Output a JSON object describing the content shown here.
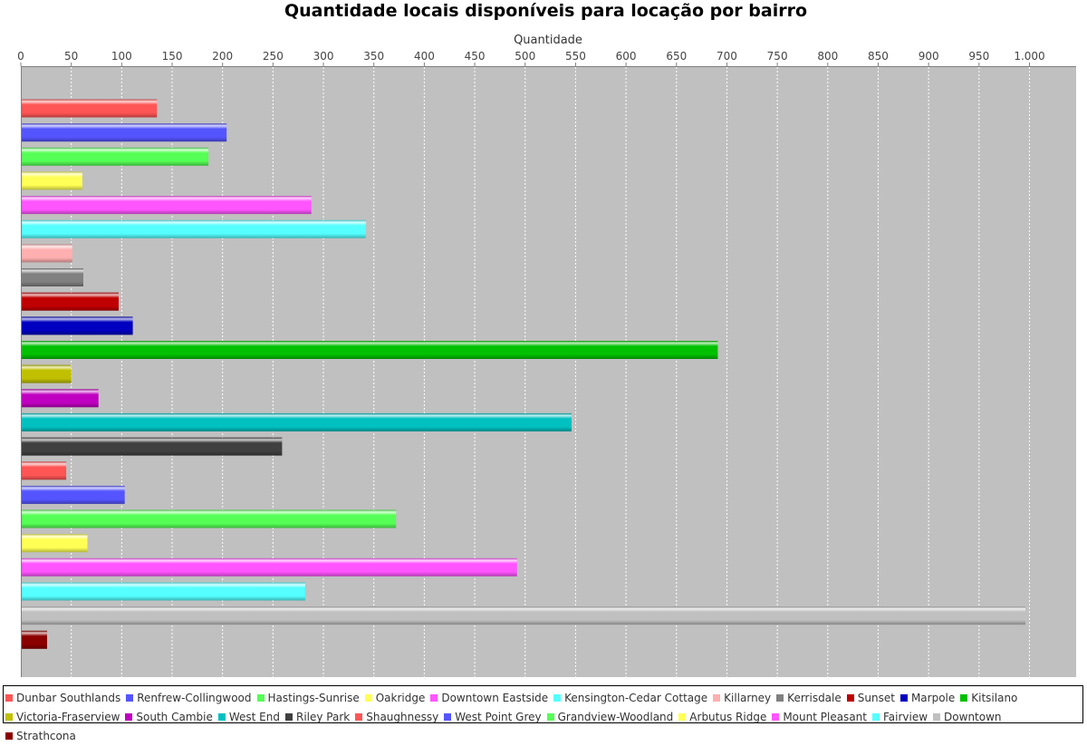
{
  "chart_data": {
    "type": "bar",
    "orientation": "horizontal",
    "title": "Quantidade locais disponíveis para locação por bairro",
    "xlabel": "Quantidade",
    "ylabel": "",
    "xlim": [
      0,
      1030
    ],
    "ticks": [
      "0",
      "50",
      "100",
      "150",
      "200",
      "250",
      "300",
      "350",
      "400",
      "450",
      "500",
      "550",
      "600",
      "650",
      "700",
      "750",
      "800",
      "850",
      "900",
      "950",
      "1.000"
    ],
    "grid": true,
    "legend_position": "bottom",
    "categories": [
      "Dunbar Southlands",
      "Renfrew-Collingwood",
      "Hastings-Sunrise",
      "Oakridge",
      "Downtown Eastside",
      "Kensington-Cedar Cottage",
      "Killarney",
      "Kerrisdale",
      "Sunset",
      "Marpole",
      "Kitsilano",
      "Victoria-Fraserview",
      "South Cambie",
      "West End",
      "Riley Park",
      "Shaughnessy",
      "West Point Grey",
      "Grandview-Woodland",
      "Arbutus Ridge",
      "Mount Pleasant",
      "Fairview",
      "Downtown",
      "Strathcona"
    ],
    "values": [
      135,
      204,
      186,
      61,
      288,
      342,
      51,
      62,
      97,
      111,
      691,
      50,
      77,
      546,
      259,
      45,
      103,
      372,
      66,
      492,
      282,
      996,
      26
    ],
    "colors": [
      "#ff5555",
      "#5555ff",
      "#55ff55",
      "#ffff55",
      "#ff55ff",
      "#55ffff",
      "#ffafaf",
      "#808080",
      "#c00000",
      "#0000c0",
      "#00c000",
      "#c0c000",
      "#c000c0",
      "#00c0c0",
      "#404040",
      "#ff5555",
      "#5555ff",
      "#55ff55",
      "#ffff55",
      "#ff55ff",
      "#55ffff",
      "#c0c0c0",
      "#8b0000"
    ]
  }
}
